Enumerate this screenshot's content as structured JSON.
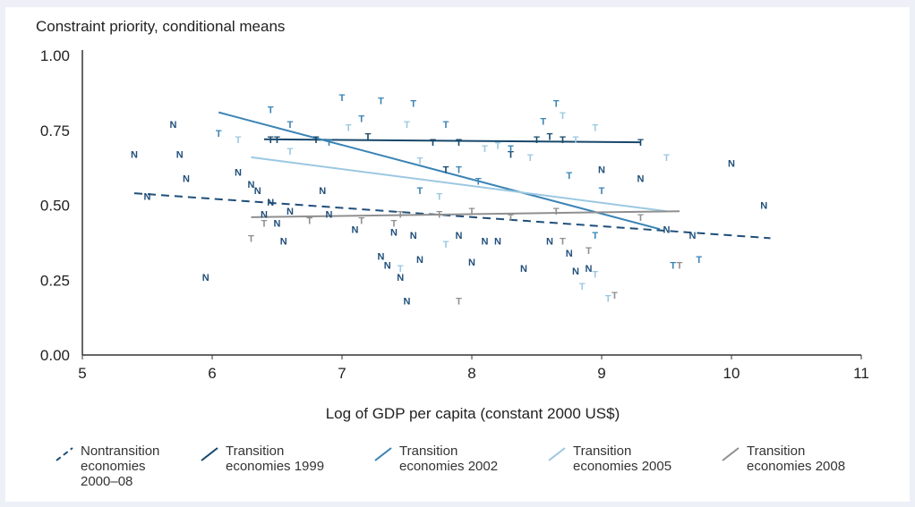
{
  "chart_data": {
    "type": "scatter",
    "title": "Constraint priority, conditional means",
    "xlabel": "Log of GDP per capita (constant 2000 US$)",
    "ylabel": "",
    "xlim": [
      5,
      11
    ],
    "ylim": [
      0,
      1
    ],
    "x_ticks": [
      "5",
      "6",
      "7",
      "8",
      "9",
      "10",
      "11"
    ],
    "x_tick_values": [
      5,
      6,
      7,
      8,
      9,
      10,
      11
    ],
    "y_ticks": [
      "0.00",
      "0.25",
      "0.50",
      "0.75",
      "1.00"
    ],
    "y_tick_values": [
      0,
      0.25,
      0.5,
      0.75,
      1.0
    ],
    "grid": false,
    "legend_position": "bottom",
    "series": [
      {
        "name": "Nontransition economies 2000–08",
        "color": "#1f4e79",
        "style": "dashed",
        "fit_line": [
          [
            5.4,
            0.54
          ],
          [
            10.3,
            0.39
          ]
        ],
        "points": [
          [
            5.4,
            0.67
          ],
          [
            5.5,
            0.53
          ],
          [
            5.7,
            0.77
          ],
          [
            5.75,
            0.67
          ],
          [
            5.8,
            0.59
          ],
          [
            5.95,
            0.26
          ],
          [
            6.2,
            0.61
          ],
          [
            6.3,
            0.57
          ],
          [
            6.35,
            0.55
          ],
          [
            6.4,
            0.47
          ],
          [
            6.45,
            0.51
          ],
          [
            6.5,
            0.44
          ],
          [
            6.55,
            0.38
          ],
          [
            6.6,
            0.48
          ],
          [
            6.85,
            0.55
          ],
          [
            6.9,
            0.47
          ],
          [
            7.1,
            0.42
          ],
          [
            7.3,
            0.33
          ],
          [
            7.35,
            0.3
          ],
          [
            7.4,
            0.41
          ],
          [
            7.45,
            0.26
          ],
          [
            7.5,
            0.18
          ],
          [
            7.55,
            0.4
          ],
          [
            7.6,
            0.32
          ],
          [
            7.9,
            0.4
          ],
          [
            8.0,
            0.31
          ],
          [
            8.1,
            0.38
          ],
          [
            8.2,
            0.38
          ],
          [
            8.4,
            0.29
          ],
          [
            8.6,
            0.38
          ],
          [
            8.75,
            0.34
          ],
          [
            8.8,
            0.28
          ],
          [
            8.9,
            0.29
          ],
          [
            9.0,
            0.62
          ],
          [
            9.3,
            0.59
          ],
          [
            9.5,
            0.42
          ],
          [
            9.7,
            0.4
          ],
          [
            10.0,
            0.64
          ],
          [
            10.25,
            0.5
          ]
        ]
      },
      {
        "name": "Transition economies 1999",
        "color": "#17476a",
        "style": "solid",
        "fit_line": [
          [
            6.4,
            0.72
          ],
          [
            9.3,
            0.71
          ]
        ],
        "points": [
          [
            6.45,
            0.72
          ],
          [
            6.5,
            0.72
          ],
          [
            6.8,
            0.72
          ],
          [
            7.2,
            0.73
          ],
          [
            7.7,
            0.71
          ],
          [
            7.9,
            0.71
          ],
          [
            8.5,
            0.72
          ],
          [
            8.7,
            0.72
          ],
          [
            9.3,
            0.71
          ],
          [
            8.6,
            0.73
          ],
          [
            7.8,
            0.62
          ],
          [
            8.3,
            0.67
          ]
        ]
      },
      {
        "name": "Transition economies 2002",
        "color": "#3a84b5",
        "style": "solid",
        "fit_line": [
          [
            6.05,
            0.81
          ],
          [
            9.45,
            0.42
          ]
        ],
        "points": [
          [
            6.05,
            0.74
          ],
          [
            6.45,
            0.82
          ],
          [
            6.6,
            0.77
          ],
          [
            6.9,
            0.71
          ],
          [
            7.0,
            0.86
          ],
          [
            7.15,
            0.79
          ],
          [
            7.3,
            0.85
          ],
          [
            7.55,
            0.84
          ],
          [
            7.8,
            0.77
          ],
          [
            7.6,
            0.55
          ],
          [
            7.9,
            0.62
          ],
          [
            8.05,
            0.58
          ],
          [
            8.3,
            0.69
          ],
          [
            8.55,
            0.78
          ],
          [
            8.75,
            0.6
          ],
          [
            9.0,
            0.55
          ],
          [
            8.95,
            0.4
          ],
          [
            9.55,
            0.3
          ],
          [
            9.75,
            0.32
          ],
          [
            8.65,
            0.84
          ]
        ]
      },
      {
        "name": "Transition economies 2005",
        "color": "#9cc8e2",
        "style": "solid",
        "fit_line": [
          [
            6.3,
            0.66
          ],
          [
            9.5,
            0.48
          ]
        ],
        "points": [
          [
            6.2,
            0.72
          ],
          [
            6.6,
            0.68
          ],
          [
            7.05,
            0.76
          ],
          [
            7.5,
            0.77
          ],
          [
            7.6,
            0.65
          ],
          [
            7.75,
            0.53
          ],
          [
            8.1,
            0.69
          ],
          [
            8.2,
            0.7
          ],
          [
            8.45,
            0.66
          ],
          [
            8.7,
            0.8
          ],
          [
            8.8,
            0.72
          ],
          [
            8.95,
            0.76
          ],
          [
            9.5,
            0.66
          ],
          [
            8.95,
            0.27
          ],
          [
            9.05,
            0.19
          ],
          [
            8.85,
            0.23
          ],
          [
            7.45,
            0.29
          ],
          [
            7.8,
            0.37
          ]
        ]
      },
      {
        "name": "Transition economies 2008",
        "color": "#8f8f8f",
        "style": "solid",
        "fit_line": [
          [
            6.3,
            0.46
          ],
          [
            9.6,
            0.48
          ]
        ],
        "points": [
          [
            6.3,
            0.39
          ],
          [
            6.4,
            0.44
          ],
          [
            6.75,
            0.45
          ],
          [
            7.15,
            0.45
          ],
          [
            7.45,
            0.47
          ],
          [
            7.75,
            0.47
          ],
          [
            8.0,
            0.48
          ],
          [
            8.3,
            0.46
          ],
          [
            8.65,
            0.48
          ],
          [
            8.9,
            0.35
          ],
          [
            9.3,
            0.46
          ],
          [
            9.6,
            0.3
          ],
          [
            8.7,
            0.38
          ],
          [
            7.9,
            0.18
          ],
          [
            9.1,
            0.2
          ],
          [
            7.4,
            0.44
          ]
        ]
      }
    ]
  },
  "legend": [
    {
      "label": "Nontransition\neconomies\n2000–08",
      "color": "#1f4e79",
      "style": "dashed"
    },
    {
      "label": "Transition\neconomies 1999",
      "color": "#17476a",
      "style": "solid"
    },
    {
      "label": "Transition\neconomies 2002",
      "color": "#3a84b5",
      "style": "solid"
    },
    {
      "label": "Transition\neconomies 2005",
      "color": "#9cc8e2",
      "style": "solid"
    },
    {
      "label": "Transition\neconomies 2008",
      "color": "#8f8f8f",
      "style": "solid"
    }
  ],
  "markers": {
    "nontransition": "N",
    "transition": "T"
  }
}
